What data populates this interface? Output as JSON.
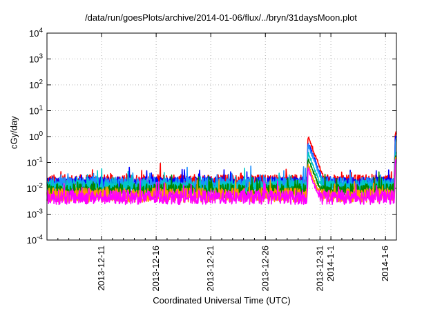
{
  "chart_data": {
    "type": "line",
    "title": "/data/run/goesPlots/archive/2014-01-06/flux/../bryn/31daysMoon.plot",
    "xlabel": "Coordinated Universal Time (UTC)",
    "ylabel": "cGy/day",
    "yscale": "log",
    "ylim": [
      0.0001,
      10000
    ],
    "xlim": [
      "2013-12-06",
      "2014-01-07"
    ],
    "grid": true,
    "y_ticks": [
      {
        "base": "10",
        "exp": "4"
      },
      {
        "base": "10",
        "exp": "3"
      },
      {
        "base": "10",
        "exp": "2"
      },
      {
        "base": "10",
        "exp": "1"
      },
      {
        "base": "10",
        "exp": "0"
      },
      {
        "base": "10",
        "exp": "-1"
      },
      {
        "base": "10",
        "exp": "-2"
      },
      {
        "base": "10",
        "exp": "-3"
      },
      {
        "base": "10",
        "exp": "-4"
      }
    ],
    "x_ticks": [
      {
        "date": "2013-12-11",
        "label": "2013-12-11"
      },
      {
        "date": "2013-12-16",
        "label": "2013-12-16"
      },
      {
        "date": "2013-12-21",
        "label": "2013-12-21"
      },
      {
        "date": "2013-12-26",
        "label": "2013-12-26"
      },
      {
        "date": "2013-12-31",
        "label": "2013-12-31"
      },
      {
        "date": "2014-01-01",
        "label": "2014-1-1"
      },
      {
        "date": "2014-01-06",
        "label": "2014-1-6"
      }
    ],
    "series": [
      {
        "color": "#ff0000",
        "baseline": 0.018,
        "events": [
          {
            "date": "2013-12-29.9",
            "value": 1.0
          },
          {
            "date": "2014-01-06.9",
            "value": 1.5
          }
        ]
      },
      {
        "color": "#0000ff",
        "baseline": 0.015,
        "events": [
          {
            "date": "2013-12-29.9",
            "value": 0.6
          },
          {
            "date": "2014-01-06.9",
            "value": 1.1
          }
        ]
      },
      {
        "color": "#1e90ff",
        "baseline": 0.014,
        "events": [
          {
            "date": "2013-12-29.9",
            "value": 0.5
          },
          {
            "date": "2014-01-06.9",
            "value": 0.8
          }
        ]
      },
      {
        "color": "#00c8c8",
        "baseline": 0.011,
        "events": [
          {
            "date": "2013-12-29.9",
            "value": 0.25
          },
          {
            "date": "2014-01-06.9",
            "value": 0.25
          }
        ]
      },
      {
        "color": "#008800",
        "baseline": 0.008,
        "events": [
          {
            "date": "2013-12-29.9",
            "value": 0.15
          },
          {
            "date": "2014-01-06.9",
            "value": 0.2
          }
        ]
      },
      {
        "color": "#ff9900",
        "baseline": 0.0055,
        "events": [
          {
            "date": "2013-12-29.9",
            "value": 0.08
          },
          {
            "date": "2014-01-06.9",
            "value": 0.15
          }
        ]
      },
      {
        "color": "#ff00ff",
        "baseline": 0.0045,
        "events": [
          {
            "date": "2013-12-29.9",
            "value": 0.06
          },
          {
            "date": "2014-01-06.9",
            "value": 0.12
          }
        ]
      }
    ]
  }
}
